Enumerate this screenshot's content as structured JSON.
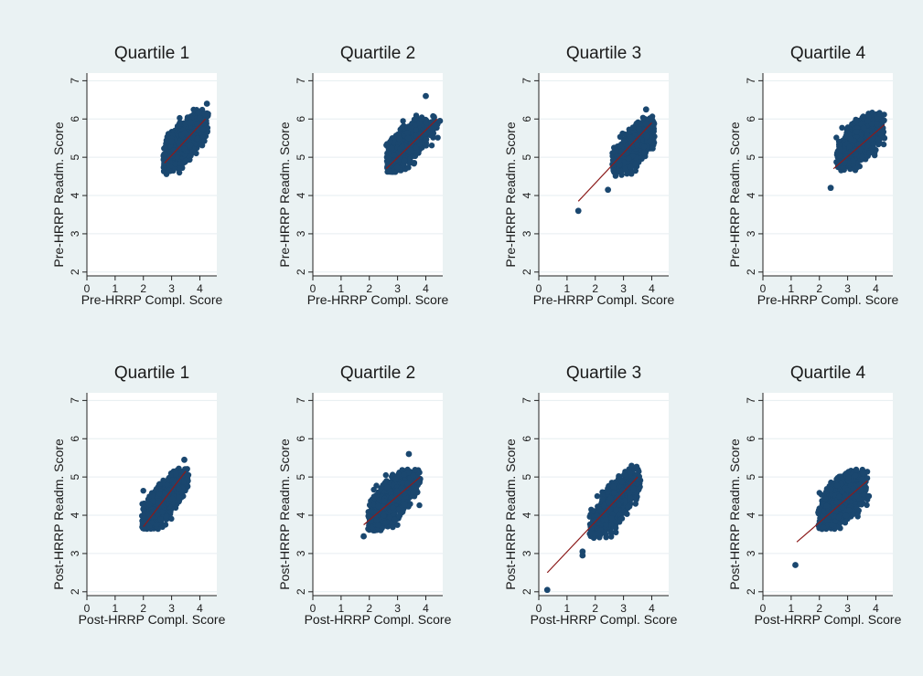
{
  "chart_data": [
    {
      "type": "scatter",
      "title": "Quartile 1",
      "xlabel": "Pre-HRRP Compl. Score",
      "ylabel": "Pre-HRRP Readm. Score",
      "xlim": [
        0,
        4.6
      ],
      "ylim": [
        1.9,
        7.2
      ],
      "xticks": [
        0,
        1,
        2,
        3,
        4
      ],
      "yticks": [
        2,
        3,
        4,
        5,
        6,
        7
      ],
      "grid": true,
      "marker_color": "#1a476f",
      "line_color": "#8b1a1a",
      "cluster": {
        "cx": 3.45,
        "cy": 5.4,
        "sx": 0.38,
        "sy": 0.32,
        "r": 0.72,
        "n": 1500,
        "xmin": 2.7,
        "xmax": 4.3,
        "ymin": 4.5,
        "ymax": 6.25
      },
      "outliers": [
        [
          4.25,
          6.4
        ]
      ],
      "fit": {
        "x": [
          2.75,
          4.2
        ],
        "y": [
          4.85,
          6.0
        ]
      }
    },
    {
      "type": "scatter",
      "title": "Quartile 2",
      "xlabel": "Pre-HRRP Compl. Score",
      "ylabel": "Pre-HRRP Readm. Score",
      "xlim": [
        0,
        4.6
      ],
      "ylim": [
        1.9,
        7.2
      ],
      "xticks": [
        0,
        1,
        2,
        3,
        4
      ],
      "yticks": [
        2,
        3,
        4,
        5,
        6,
        7
      ],
      "grid": true,
      "marker_color": "#1a476f",
      "line_color": "#8b1a1a",
      "cluster": {
        "cx": 3.35,
        "cy": 5.35,
        "sx": 0.38,
        "sy": 0.3,
        "r": 0.72,
        "n": 1500,
        "xmin": 2.6,
        "xmax": 4.5,
        "ymin": 4.6,
        "ymax": 6.1
      },
      "outliers": [
        [
          4.0,
          6.6
        ],
        [
          4.5,
          5.95
        ]
      ],
      "fit": {
        "x": [
          2.6,
          4.4
        ],
        "y": [
          4.7,
          6.0
        ]
      }
    },
    {
      "type": "scatter",
      "title": "Quartile 3",
      "xlabel": "Pre-HRRP Compl. Score",
      "ylabel": "Pre-HRRP Readm. Score",
      "xlim": [
        0,
        4.6
      ],
      "ylim": [
        1.9,
        7.2
      ],
      "xticks": [
        0,
        1,
        2,
        3,
        4
      ],
      "yticks": [
        2,
        3,
        4,
        5,
        6,
        7
      ],
      "grid": true,
      "marker_color": "#1a476f",
      "line_color": "#8b1a1a",
      "cluster": {
        "cx": 3.4,
        "cy": 5.3,
        "sx": 0.35,
        "sy": 0.3,
        "r": 0.75,
        "n": 1500,
        "xmin": 2.6,
        "xmax": 4.1,
        "ymin": 4.5,
        "ymax": 6.1
      },
      "outliers": [
        [
          1.4,
          3.6
        ],
        [
          2.45,
          4.15
        ],
        [
          3.8,
          6.25
        ]
      ],
      "fit": {
        "x": [
          1.4,
          4.0
        ],
        "y": [
          3.85,
          5.9
        ]
      }
    },
    {
      "type": "scatter",
      "title": "Quartile 4",
      "xlabel": "Pre-HRRP Compl. Score",
      "ylabel": "Pre-HRRP Readm. Score",
      "xlim": [
        0,
        4.6
      ],
      "ylim": [
        1.9,
        7.2
      ],
      "xticks": [
        0,
        1,
        2,
        3,
        4
      ],
      "yticks": [
        2,
        3,
        4,
        5,
        6,
        7
      ],
      "grid": true,
      "marker_color": "#1a476f",
      "line_color": "#8b1a1a",
      "cluster": {
        "cx": 3.4,
        "cy": 5.4,
        "sx": 0.38,
        "sy": 0.3,
        "r": 0.65,
        "n": 1500,
        "xmin": 2.6,
        "xmax": 4.3,
        "ymin": 4.65,
        "ymax": 6.2
      },
      "outliers": [
        [
          2.4,
          4.2
        ],
        [
          4.3,
          5.5
        ]
      ],
      "fit": {
        "x": [
          2.5,
          4.3
        ],
        "y": [
          4.7,
          5.85
        ]
      }
    },
    {
      "type": "scatter",
      "title": "Quartile 1",
      "xlabel": "Post-HRRP Compl. Score",
      "ylabel": "Post-HRRP Readm. Score",
      "xlim": [
        0,
        4.6
      ],
      "ylim": [
        1.9,
        7.2
      ],
      "xticks": [
        0,
        1,
        2,
        3,
        4
      ],
      "yticks": [
        2,
        3,
        4,
        5,
        6,
        7
      ],
      "grid": true,
      "marker_color": "#1a476f",
      "line_color": "#8b1a1a",
      "cluster": {
        "cx": 2.75,
        "cy": 4.4,
        "sx": 0.38,
        "sy": 0.35,
        "r": 0.78,
        "n": 1500,
        "xmin": 1.95,
        "xmax": 3.6,
        "ymin": 3.6,
        "ymax": 5.25
      },
      "outliers": [
        [
          3.45,
          5.45
        ]
      ],
      "fit": {
        "x": [
          2.0,
          3.5
        ],
        "y": [
          3.7,
          5.15
        ]
      }
    },
    {
      "type": "scatter",
      "title": "Quartile 2",
      "xlabel": "Post-HRRP Compl. Score",
      "ylabel": "Post-HRRP Readm. Score",
      "xlim": [
        0,
        4.6
      ],
      "ylim": [
        1.9,
        7.2
      ],
      "xticks": [
        0,
        1,
        2,
        3,
        4
      ],
      "yticks": [
        2,
        3,
        4,
        5,
        6,
        7
      ],
      "grid": true,
      "marker_color": "#1a476f",
      "line_color": "#8b1a1a",
      "cluster": {
        "cx": 2.75,
        "cy": 4.35,
        "sx": 0.4,
        "sy": 0.35,
        "r": 0.72,
        "n": 1500,
        "xmin": 1.95,
        "xmax": 3.8,
        "ymin": 3.6,
        "ymax": 5.2
      },
      "outliers": [
        [
          1.8,
          3.45
        ],
        [
          3.4,
          5.6
        ],
        [
          3.8,
          4.95
        ]
      ],
      "fit": {
        "x": [
          1.8,
          3.8
        ],
        "y": [
          3.75,
          5.0
        ]
      }
    },
    {
      "type": "scatter",
      "title": "Quartile 3",
      "xlabel": "Post-HRRP Compl. Score",
      "ylabel": "Post-HRRP Readm. Score",
      "xlim": [
        0,
        4.6
      ],
      "ylim": [
        1.9,
        7.2
      ],
      "xticks": [
        0,
        1,
        2,
        3,
        4
      ],
      "yticks": [
        2,
        3,
        4,
        5,
        6,
        7
      ],
      "grid": true,
      "marker_color": "#1a476f",
      "line_color": "#8b1a1a",
      "cluster": {
        "cx": 2.7,
        "cy": 4.3,
        "sx": 0.4,
        "sy": 0.38,
        "r": 0.8,
        "n": 1500,
        "xmin": 1.8,
        "xmax": 3.6,
        "ymin": 3.4,
        "ymax": 5.3
      },
      "outliers": [
        [
          0.3,
          2.05
        ],
        [
          1.55,
          3.05
        ],
        [
          1.55,
          2.95
        ]
      ],
      "fit": {
        "x": [
          0.3,
          3.5
        ],
        "y": [
          2.5,
          5.0
        ]
      }
    },
    {
      "type": "scatter",
      "title": "Quartile 4",
      "xlabel": "Post-HRRP Compl. Score",
      "ylabel": "Post-HRRP Readm. Score",
      "xlim": [
        0,
        4.6
      ],
      "ylim": [
        1.9,
        7.2
      ],
      "xticks": [
        0,
        1,
        2,
        3,
        4
      ],
      "yticks": [
        2,
        3,
        4,
        5,
        6,
        7
      ],
      "grid": true,
      "marker_color": "#1a476f",
      "line_color": "#8b1a1a",
      "cluster": {
        "cx": 2.8,
        "cy": 4.4,
        "sx": 0.38,
        "sy": 0.32,
        "r": 0.6,
        "n": 1500,
        "xmin": 1.95,
        "xmax": 3.7,
        "ymin": 3.6,
        "ymax": 5.2
      },
      "outliers": [
        [
          1.15,
          2.7
        ],
        [
          3.75,
          4.5
        ]
      ],
      "fit": {
        "x": [
          1.2,
          3.7
        ],
        "y": [
          3.3,
          4.9
        ]
      }
    }
  ]
}
